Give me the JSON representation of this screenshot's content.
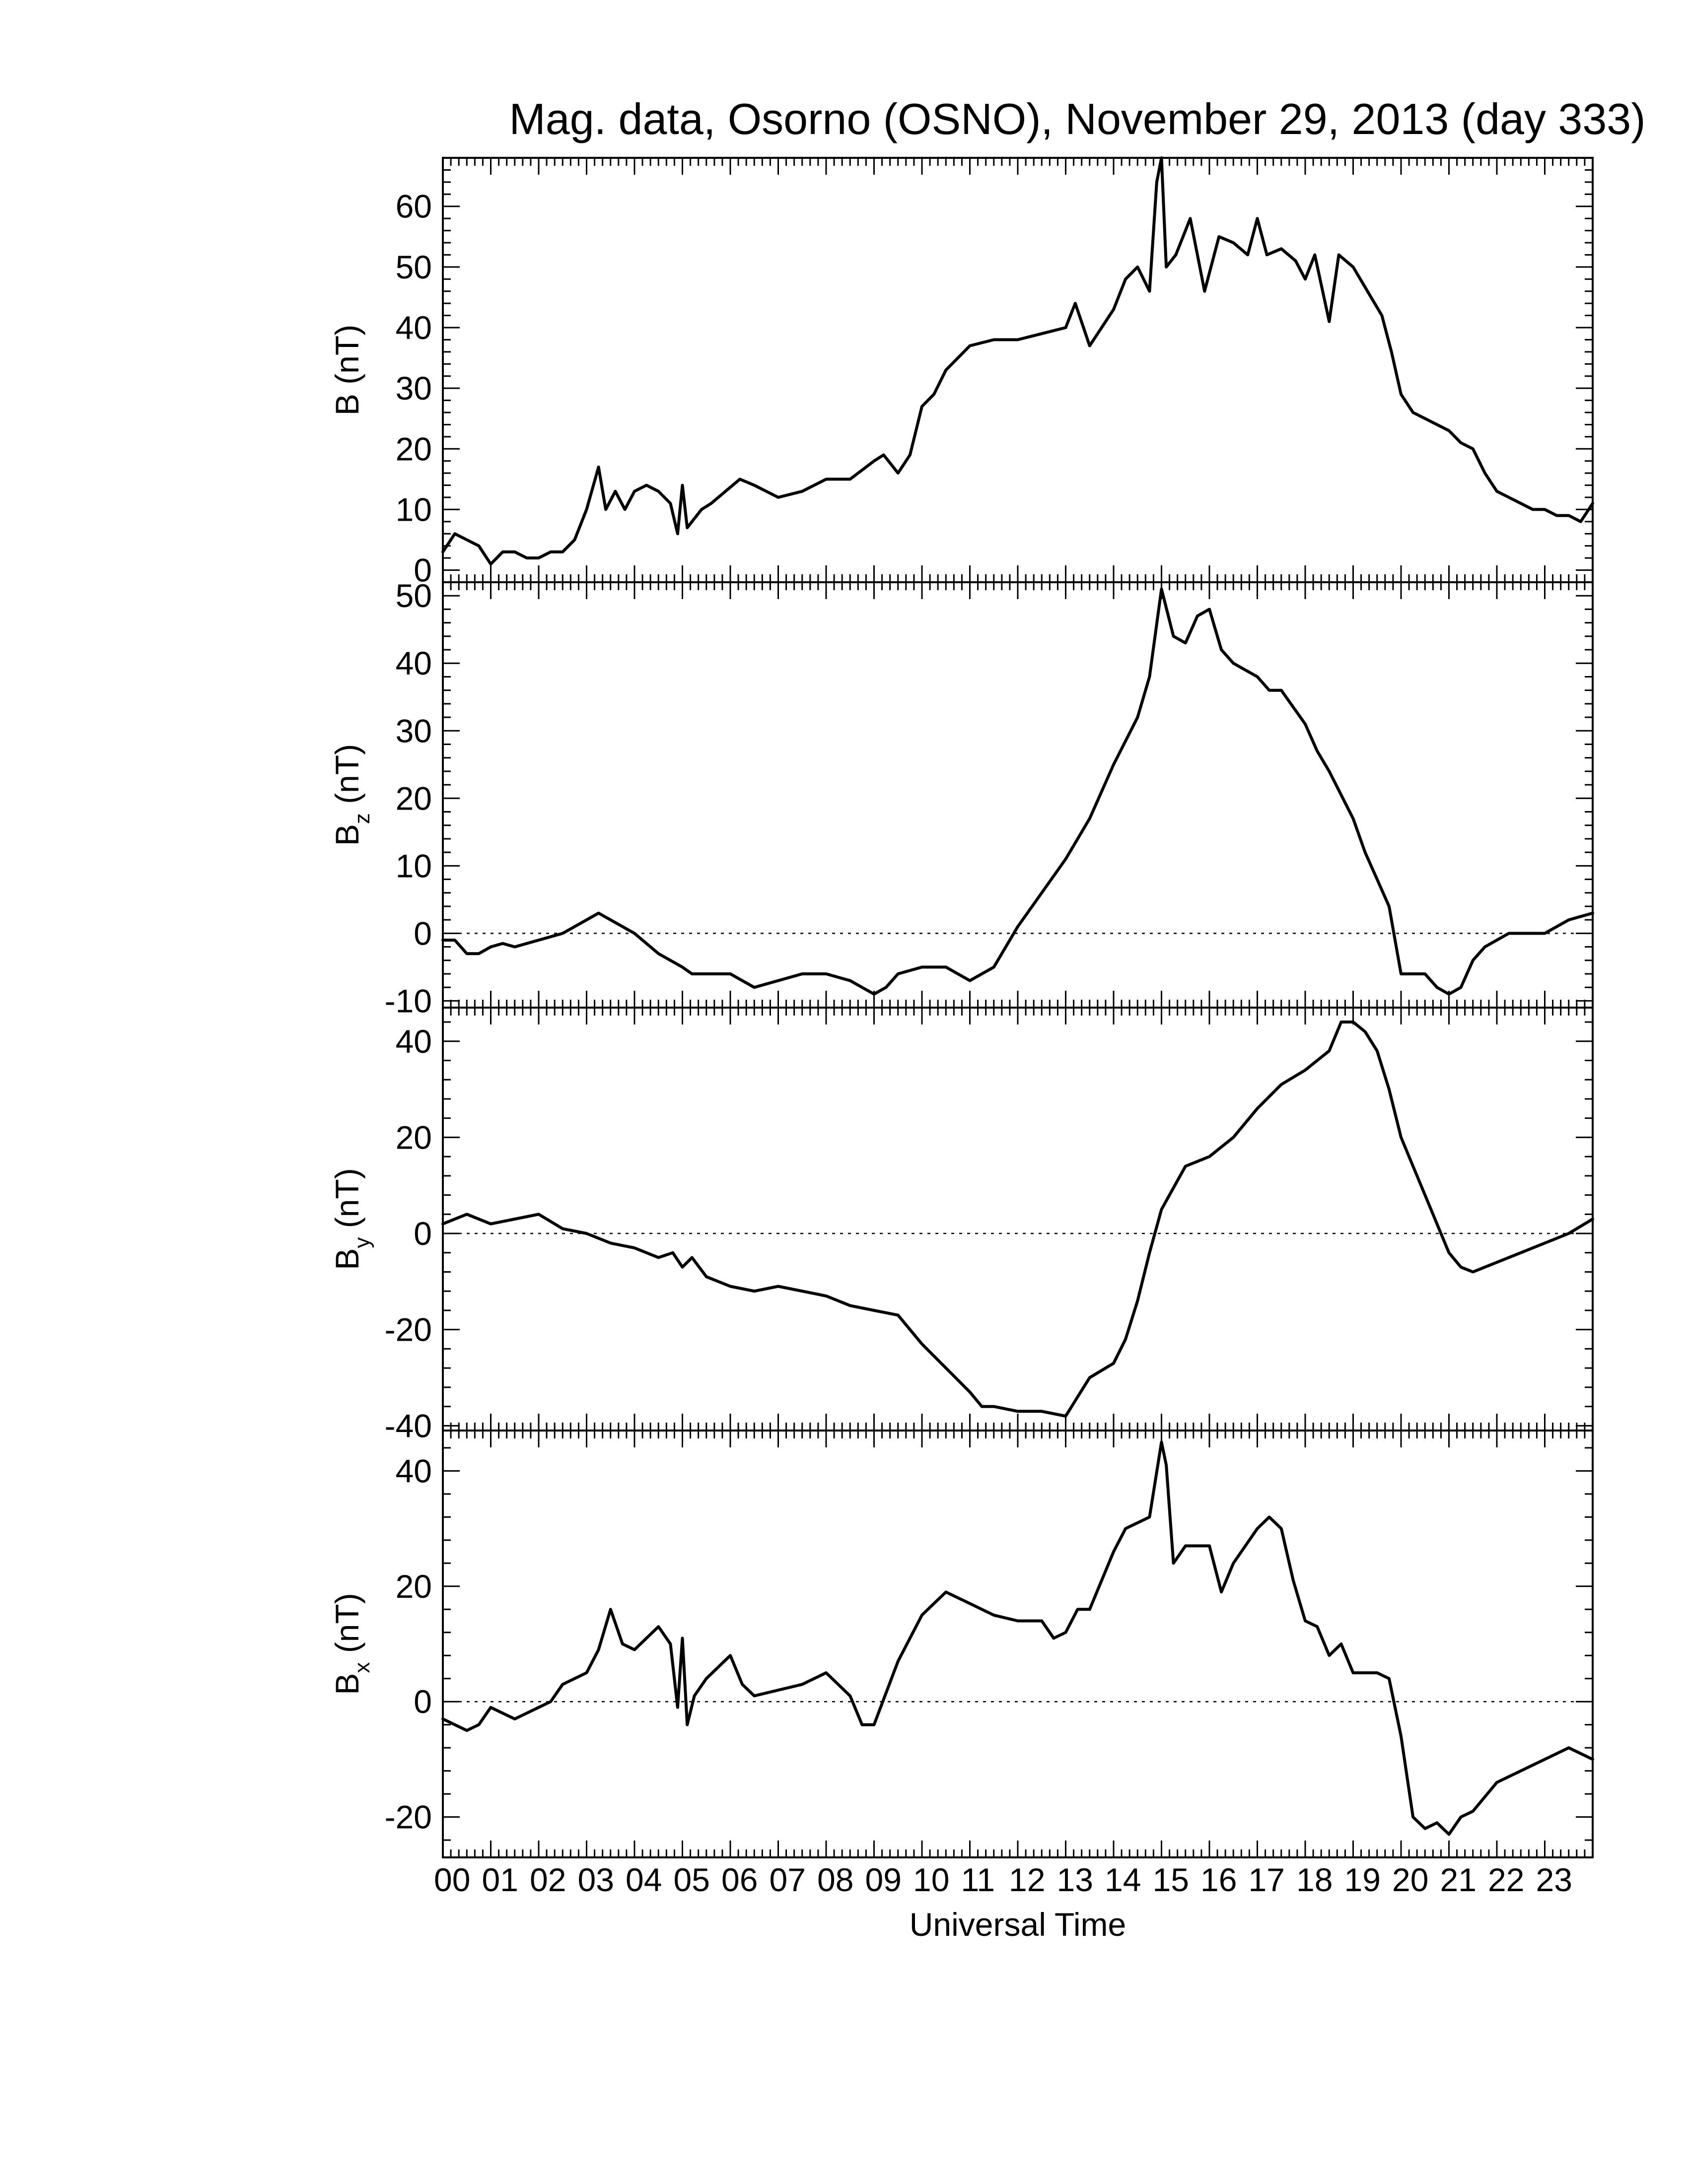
{
  "chart_data": {
    "type": "line",
    "title": "Mag. data, Osorno (OSNO), November 29, 2013 (day 333)",
    "xlabel": "Universal Time",
    "xlim": [
      0,
      24
    ],
    "x_tick_labels": [
      "00",
      "01",
      "02",
      "03",
      "04",
      "05",
      "06",
      "07",
      "08",
      "09",
      "10",
      "11",
      "12",
      "13",
      "14",
      "15",
      "16",
      "17",
      "18",
      "19",
      "20",
      "21",
      "22",
      "23"
    ],
    "panels": [
      {
        "id": "B",
        "ylabel": "B (nT)",
        "ylabel_main": "B",
        "ylabel_sub": "",
        "ylabel_unit": " (nT)",
        "ylim": [
          -2,
          68
        ],
        "yticks": [
          0,
          10,
          20,
          30,
          40,
          50,
          60
        ],
        "ytick_labels": [
          "0",
          "10",
          "20",
          "30",
          "40",
          "50",
          "60"
        ],
        "zero_line": false,
        "x": [
          0.0,
          0.25,
          0.5,
          0.75,
          1.0,
          1.25,
          1.5,
          1.75,
          2.0,
          2.25,
          2.5,
          2.75,
          3.0,
          3.25,
          3.4,
          3.6,
          3.8,
          4.0,
          4.25,
          4.5,
          4.75,
          4.9,
          5.0,
          5.1,
          5.2,
          5.4,
          5.6,
          5.9,
          6.2,
          6.5,
          7.0,
          7.5,
          8.0,
          8.5,
          9.0,
          9.2,
          9.5,
          9.75,
          10.0,
          10.25,
          10.5,
          10.75,
          11.0,
          11.5,
          12.0,
          12.5,
          13.0,
          13.2,
          13.5,
          14.0,
          14.25,
          14.5,
          14.75,
          14.9,
          15.0,
          15.1,
          15.3,
          15.6,
          15.9,
          16.2,
          16.5,
          16.8,
          17.0,
          17.2,
          17.5,
          17.8,
          18.0,
          18.2,
          18.5,
          18.7,
          19.0,
          19.3,
          19.6,
          19.8,
          20.0,
          20.25,
          20.5,
          20.75,
          21.0,
          21.25,
          21.5,
          21.75,
          22.0,
          22.25,
          22.5,
          22.75,
          23.0,
          23.25,
          23.5,
          23.75,
          24.0
        ],
        "y": [
          3,
          6,
          5,
          4,
          1,
          3,
          3,
          2,
          2,
          3,
          3,
          5,
          10,
          17,
          10,
          13,
          10,
          13,
          14,
          13,
          11,
          6,
          14,
          7,
          8,
          10,
          11,
          13,
          15,
          14,
          12,
          13,
          15,
          15,
          18,
          19,
          16,
          19,
          27,
          29,
          33,
          35,
          37,
          38,
          38,
          39,
          40,
          44,
          37,
          43,
          48,
          50,
          46,
          64,
          68,
          50,
          52,
          58,
          46,
          55,
          54,
          52,
          58,
          52,
          53,
          51,
          48,
          52,
          41,
          52,
          50,
          46,
          42,
          36,
          29,
          26,
          25,
          24,
          23,
          21,
          20,
          16,
          13,
          12,
          11,
          10,
          10,
          9,
          9,
          8,
          11
        ]
      },
      {
        "id": "Bz",
        "ylabel": "Bz (nT)",
        "ylabel_main": "B",
        "ylabel_sub": "z",
        "ylabel_unit": " (nT)",
        "ylim": [
          -11,
          52
        ],
        "yticks": [
          -10,
          0,
          10,
          20,
          30,
          40,
          50
        ],
        "ytick_labels": [
          "-10",
          "0",
          "10",
          "20",
          "30",
          "40",
          "50"
        ],
        "zero_line": true,
        "x": [
          0.0,
          0.25,
          0.5,
          0.75,
          1.0,
          1.25,
          1.5,
          2.0,
          2.5,
          3.0,
          3.25,
          3.5,
          4.0,
          4.5,
          5.0,
          5.2,
          5.5,
          6.0,
          6.5,
          7.0,
          7.5,
          8.0,
          8.5,
          9.0,
          9.25,
          9.5,
          10.0,
          10.5,
          11.0,
          11.5,
          12.0,
          12.5,
          13.0,
          13.5,
          14.0,
          14.5,
          14.75,
          15.0,
          15.25,
          15.5,
          15.75,
          16.0,
          16.25,
          16.5,
          17.0,
          17.25,
          17.5,
          18.0,
          18.25,
          18.5,
          19.0,
          19.25,
          19.5,
          19.75,
          20.0,
          20.25,
          20.5,
          20.75,
          21.0,
          21.25,
          21.5,
          21.75,
          22.0,
          22.25,
          22.5,
          22.75,
          23.0,
          23.5,
          24.0
        ],
        "y": [
          -1,
          -1,
          -3,
          -3,
          -2,
          -1.5,
          -2,
          -1,
          0,
          2,
          3,
          2,
          0,
          -3,
          -5,
          -6,
          -6,
          -6,
          -8,
          -7,
          -6,
          -6,
          -7,
          -9,
          -8,
          -6,
          -5,
          -5,
          -7,
          -5,
          1,
          6,
          11,
          17,
          25,
          32,
          38,
          51,
          44,
          43,
          47,
          48,
          42,
          40,
          38,
          36,
          36,
          31,
          27,
          24,
          17,
          12,
          8,
          4,
          -6,
          -6,
          -6,
          -8,
          -9,
          -8,
          -4,
          -2,
          -1,
          0,
          0,
          0,
          0,
          2,
          3
        ]
      },
      {
        "id": "By",
        "ylabel": "By (nT)",
        "ylabel_main": "B",
        "ylabel_sub": "y",
        "ylabel_unit": " (nT)",
        "ylim": [
          -41,
          47
        ],
        "yticks": [
          -40,
          -20,
          0,
          20,
          40
        ],
        "ytick_labels": [
          "-40",
          "-20",
          "0",
          "20",
          "40"
        ],
        "zero_line": true,
        "x": [
          0.0,
          0.5,
          1.0,
          1.5,
          2.0,
          2.5,
          3.0,
          3.5,
          4.0,
          4.5,
          4.8,
          5.0,
          5.2,
          5.5,
          6.0,
          6.5,
          7.0,
          7.5,
          8.0,
          8.5,
          9.0,
          9.5,
          10.0,
          10.5,
          11.0,
          11.25,
          11.5,
          12.0,
          12.5,
          13.0,
          13.25,
          13.5,
          14.0,
          14.25,
          14.5,
          14.75,
          15.0,
          15.5,
          16.0,
          16.5,
          17.0,
          17.5,
          18.0,
          18.5,
          18.75,
          19.0,
          19.25,
          19.5,
          19.75,
          20.0,
          20.5,
          21.0,
          21.25,
          21.5,
          21.75,
          22.0,
          22.5,
          23.0,
          23.5,
          24.0
        ],
        "y": [
          2,
          4,
          2,
          3,
          4,
          1,
          0,
          -2,
          -3,
          -5,
          -4,
          -7,
          -5,
          -9,
          -11,
          -12,
          -11,
          -12,
          -13,
          -15,
          -16,
          -17,
          -23,
          -28,
          -33,
          -36,
          -36,
          -37,
          -37,
          -38,
          -34,
          -30,
          -27,
          -22,
          -14,
          -4,
          5,
          14,
          16,
          20,
          26,
          31,
          34,
          38,
          44,
          44,
          42,
          38,
          30,
          20,
          8,
          -4,
          -7,
          -8,
          -7,
          -6,
          -4,
          -2,
          0,
          3
        ]
      },
      {
        "id": "Bx",
        "ylabel": "Bx (nT)",
        "ylabel_main": "B",
        "ylabel_sub": "x",
        "ylabel_unit": " (nT)",
        "ylim": [
          -27,
          47
        ],
        "yticks": [
          -20,
          0,
          20,
          40
        ],
        "ytick_labels": [
          "-20",
          "0",
          "20",
          "40"
        ],
        "zero_line": true,
        "x": [
          0.0,
          0.25,
          0.5,
          0.75,
          1.0,
          1.25,
          1.5,
          2.0,
          2.25,
          2.5,
          3.0,
          3.25,
          3.5,
          3.75,
          4.0,
          4.5,
          4.75,
          4.9,
          5.0,
          5.1,
          5.25,
          5.5,
          6.0,
          6.25,
          6.5,
          7.0,
          7.5,
          8.0,
          8.5,
          8.75,
          9.0,
          9.5,
          10.0,
          10.25,
          10.5,
          11.0,
          11.5,
          12.0,
          12.5,
          12.75,
          13.0,
          13.25,
          13.5,
          14.0,
          14.25,
          14.5,
          14.75,
          15.0,
          15.1,
          15.25,
          15.5,
          15.75,
          16.0,
          16.25,
          16.5,
          17.0,
          17.25,
          17.5,
          17.75,
          18.0,
          18.25,
          18.5,
          18.75,
          19.0,
          19.5,
          19.75,
          20.0,
          20.25,
          20.5,
          20.75,
          21.0,
          21.25,
          21.5,
          22.0,
          22.5,
          23.0,
          23.5,
          24.0
        ],
        "y": [
          -3,
          -4,
          -5,
          -4,
          -1,
          -2,
          -3,
          -1,
          0,
          3,
          5,
          9,
          16,
          10,
          9,
          13,
          10,
          -1,
          11,
          -4,
          1,
          4,
          8,
          3,
          1,
          2,
          3,
          5,
          1,
          -4,
          -4,
          7,
          15,
          17,
          19,
          17,
          15,
          14,
          14,
          11,
          12,
          16,
          16,
          26,
          30,
          31,
          32,
          45,
          41,
          24,
          27,
          27,
          27,
          19,
          24,
          30,
          32,
          30,
          21,
          14,
          13,
          8,
          10,
          5,
          5,
          4,
          -6,
          -20,
          -22,
          -21,
          -23,
          -20,
          -19,
          -14,
          -12,
          -10,
          -8,
          -10
        ]
      }
    ]
  }
}
